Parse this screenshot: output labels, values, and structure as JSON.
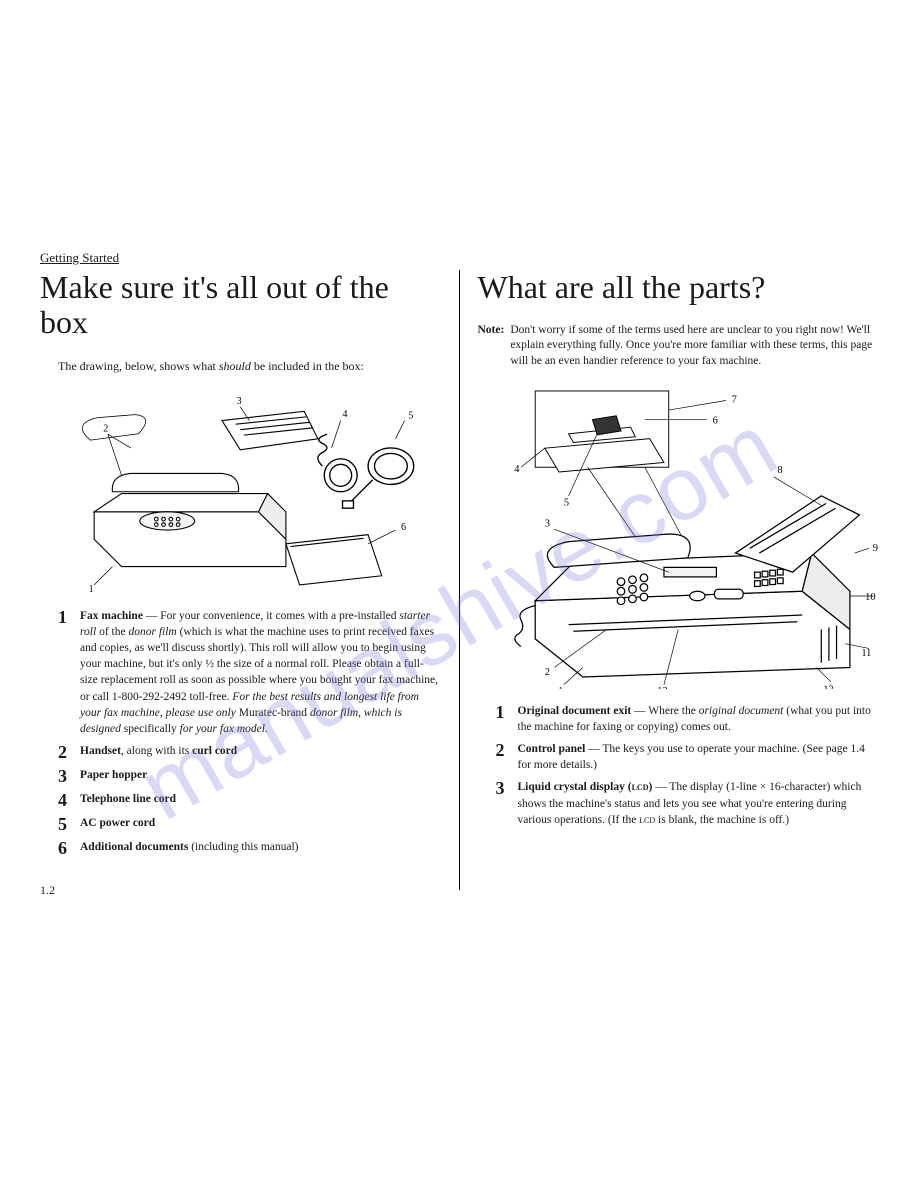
{
  "section_label": "Getting Started",
  "page_number": "1.2",
  "watermark": "manualshive.com",
  "left": {
    "title": "Make sure it's all out of the box",
    "intro_pre": "The drawing, below, shows what ",
    "intro_em": "should",
    "intro_post": " be included in the box:",
    "figure_callouts": [
      "1",
      "2",
      "3",
      "4",
      "5",
      "6"
    ],
    "items": [
      {
        "num": "1",
        "html": "<b>Fax machine</b> — For your convenience, it comes with a pre-installed <em>starter roll</em> of the <em>donor film</em> (which is what the machine uses to print received faxes and copies, as we'll discuss shortly). This roll will allow you to begin using your machine, but it's only ½ the size of a normal roll. Please obtain a full-size replacement roll as soon as possible where you bought your fax machine, or call 1-800-292-2492 toll-free. <em>For the best results and longest life from your fax machine, please use only</em> Muratec-brand <em>donor film, which is designed</em> specifically <em>for your fax model.</em>"
      },
      {
        "num": "2",
        "html": "<b>Handset</b>, along with its <b>curl cord</b>"
      },
      {
        "num": "3",
        "html": "<b>Paper hopper</b>"
      },
      {
        "num": "4",
        "html": "<b>Telephone line cord</b>"
      },
      {
        "num": "5",
        "html": "<b><span class='sc'>AC</span> power cord</b>"
      },
      {
        "num": "6",
        "html": "<b>Additional documents</b> (including this manual)"
      }
    ]
  },
  "right": {
    "title": "What are all the parts?",
    "note_label": "Note:",
    "note_text": "Don't worry if some of the terms used here are unclear to you right now! We'll explain everything fully. Once you're more familiar with these terms, this page will be an even handier reference to your fax machine.",
    "figure_callouts": [
      "1",
      "2",
      "3",
      "4",
      "5",
      "6",
      "7",
      "8",
      "9",
      "10",
      "11",
      "12",
      "13"
    ],
    "items": [
      {
        "num": "1",
        "html": "<b>Original document exit</b> — Where the <em>original document</em> (what you put into the machine for faxing or copying) comes out."
      },
      {
        "num": "2",
        "html": "<b>Control panel</b> — The keys you use to operate your machine. (See page 1.4 for more details.)"
      },
      {
        "num": "3",
        "html": "<b>Liquid crystal display (<span class='sc'>lcd</span>)</b> — The display (1-line × 16-character) which shows the machine's status and lets you see what you're entering during various operations. (If the <span class='sc'>lcd</span> is blank, the machine is off.)"
      }
    ]
  },
  "colors": {
    "text": "#1a1a1a",
    "bg": "#ffffff",
    "rule": "#000000",
    "watermark": "rgba(120,120,220,0.28)"
  }
}
